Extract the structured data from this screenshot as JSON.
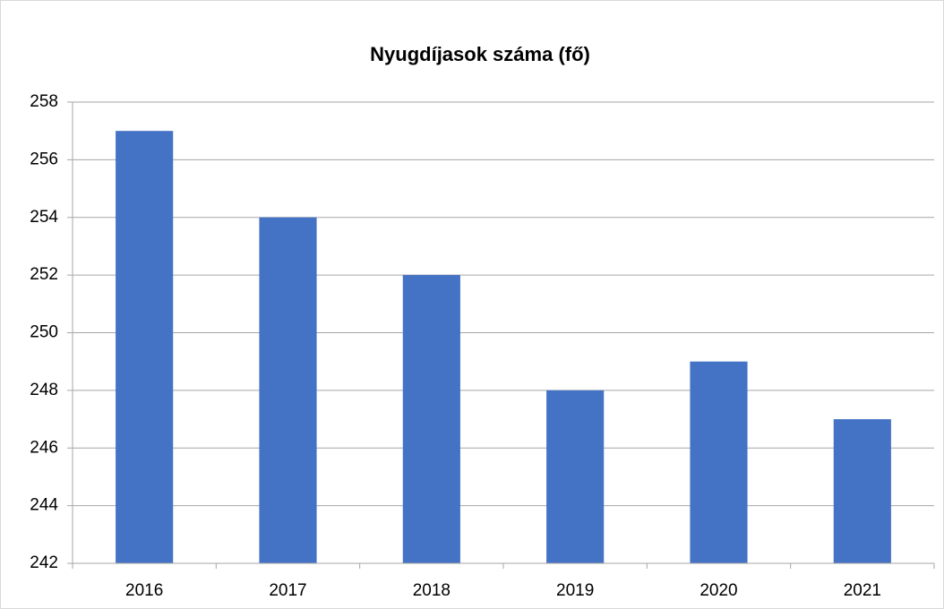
{
  "chart_data": {
    "type": "bar",
    "title": "Nyugdíjasok száma (fő)",
    "categories": [
      "2016",
      "2017",
      "2018",
      "2019",
      "2020",
      "2021"
    ],
    "values": [
      257,
      254,
      252,
      248,
      249,
      247
    ],
    "color": "#4472c4",
    "ylim": [
      242,
      258
    ],
    "yticks": [
      242,
      244,
      246,
      248,
      250,
      252,
      254,
      256,
      258
    ],
    "grid": true
  }
}
